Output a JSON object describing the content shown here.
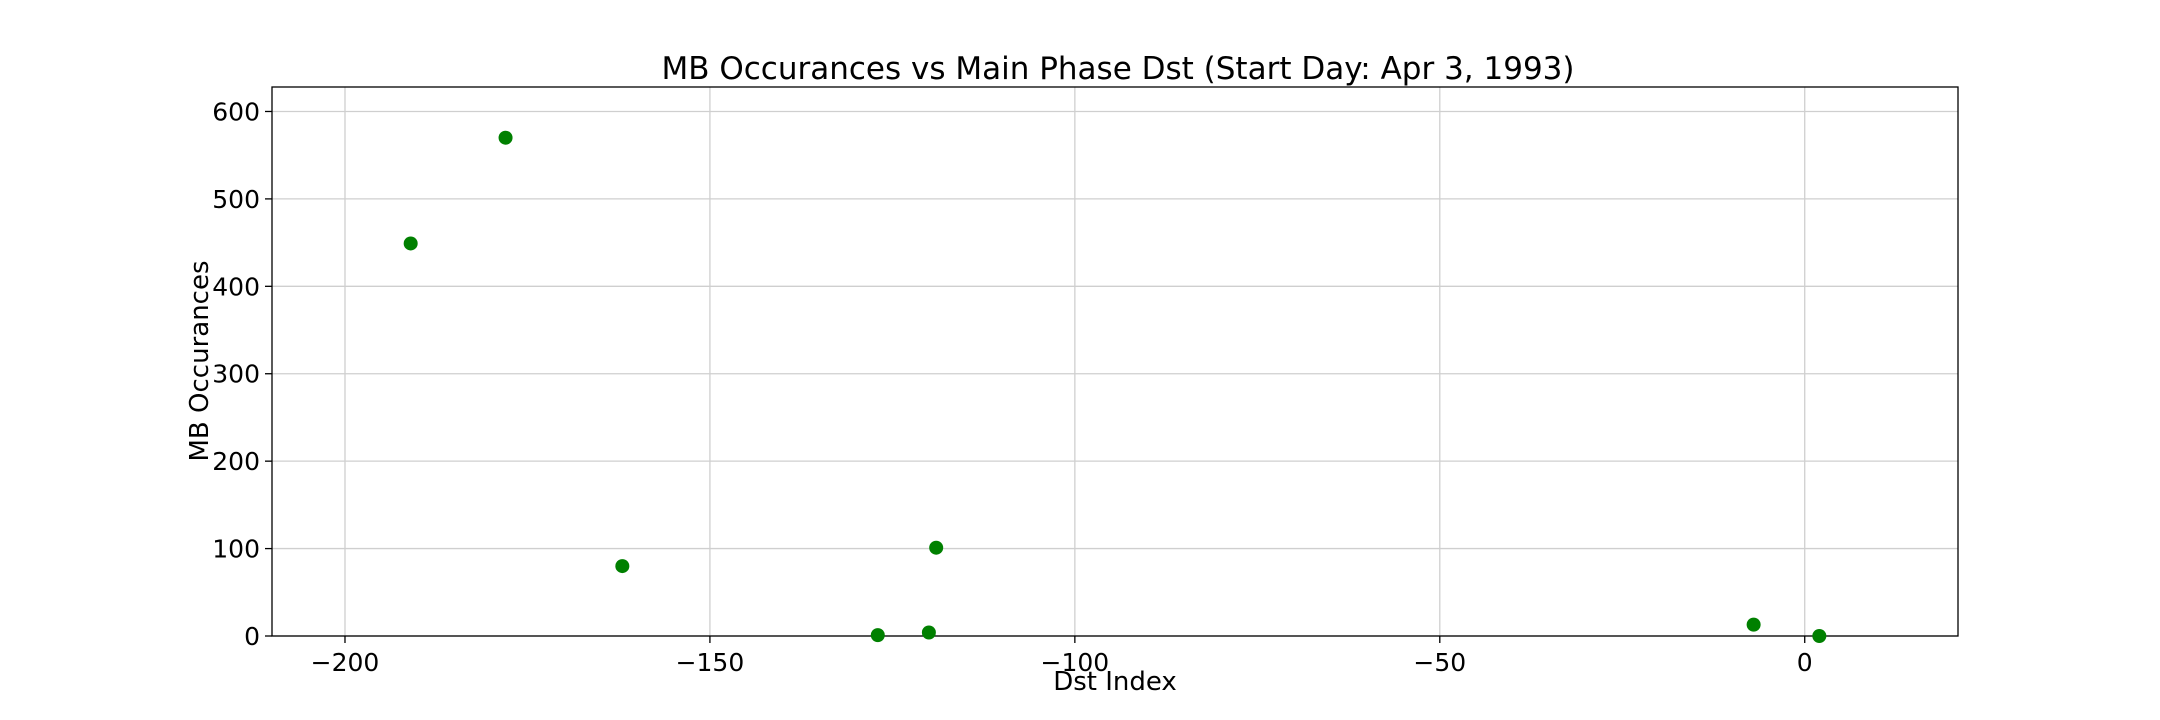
{
  "chart_data": {
    "type": "scatter",
    "title": "MB Occurances vs Main Phase Dst (Start Day: Apr 3, 1993)",
    "xlabel": "Dst Index",
    "ylabel": "MB Occurances",
    "xlim": [
      -210,
      21
    ],
    "ylim": [
      0,
      628
    ],
    "x_ticks": [
      -200,
      -150,
      -100,
      -50,
      0
    ],
    "x_tick_labels": [
      "−200",
      "−150",
      "−100",
      "−50",
      "0"
    ],
    "y_ticks": [
      0,
      100,
      200,
      300,
      400,
      500,
      600
    ],
    "y_tick_labels": [
      "0",
      "100",
      "200",
      "300",
      "400",
      "500",
      "600"
    ],
    "grid": true,
    "series": [
      {
        "color": "#008000",
        "points": [
          {
            "x": -191,
            "y": 449
          },
          {
            "x": -178,
            "y": 570
          },
          {
            "x": -162,
            "y": 80
          },
          {
            "x": -127,
            "y": 1
          },
          {
            "x": -120,
            "y": 4
          },
          {
            "x": -119,
            "y": 101
          },
          {
            "x": -7,
            "y": 13
          },
          {
            "x": 2,
            "y": 0
          }
        ]
      }
    ]
  }
}
